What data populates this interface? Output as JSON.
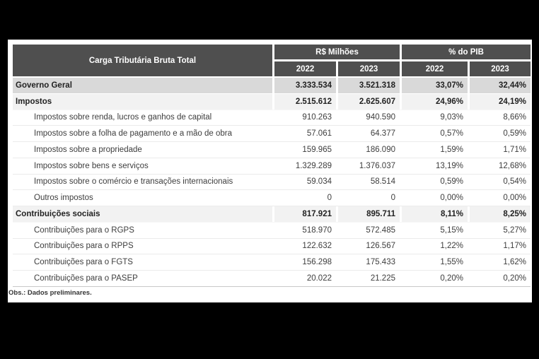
{
  "title": "Carga Tributária Bruta Total",
  "header": {
    "groups": [
      {
        "label": "R$ Milhões"
      },
      {
        "label": "% do PIB"
      }
    ],
    "years": [
      "2022",
      "2023",
      "2022",
      "2023"
    ]
  },
  "rows": [
    {
      "label": "Governo Geral",
      "level": 0,
      "emphasis": "total",
      "values": [
        "3.333.534",
        "3.521.318",
        "33,07%",
        "32,44%"
      ]
    },
    {
      "label": "Impostos",
      "level": 0,
      "emphasis": "section",
      "values": [
        "2.515.612",
        "2.625.607",
        "24,96%",
        "24,19%"
      ]
    },
    {
      "label": "Impostos sobre renda, lucros e ganhos de capital",
      "level": 1,
      "emphasis": "none",
      "values": [
        "910.263",
        "940.590",
        "9,03%",
        "8,66%"
      ]
    },
    {
      "label": "Impostos sobre a folha de pagamento e a mão de obra",
      "level": 1,
      "emphasis": "none",
      "values": [
        "57.061",
        "64.377",
        "0,57%",
        "0,59%"
      ]
    },
    {
      "label": "Impostos sobre a propriedade",
      "level": 1,
      "emphasis": "none",
      "values": [
        "159.965",
        "186.090",
        "1,59%",
        "1,71%"
      ]
    },
    {
      "label": "Impostos sobre bens e serviços",
      "level": 1,
      "emphasis": "none",
      "values": [
        "1.329.289",
        "1.376.037",
        "13,19%",
        "12,68%"
      ]
    },
    {
      "label": "Impostos sobre o comércio e transações internacionais",
      "level": 1,
      "emphasis": "none",
      "values": [
        "59.034",
        "58.514",
        "0,59%",
        "0,54%"
      ]
    },
    {
      "label": "Outros impostos",
      "level": 1,
      "emphasis": "none",
      "values": [
        "0",
        "0",
        "0,00%",
        "0,00%"
      ]
    },
    {
      "label": "Contribuições sociais",
      "level": 0,
      "emphasis": "section",
      "values": [
        "817.921",
        "895.711",
        "8,11%",
        "8,25%"
      ]
    },
    {
      "label": "Contribuições para o RGPS",
      "level": 1,
      "emphasis": "none",
      "values": [
        "518.970",
        "572.485",
        "5,15%",
        "5,27%"
      ]
    },
    {
      "label": "Contribuições para o RPPS",
      "level": 1,
      "emphasis": "none",
      "values": [
        "122.632",
        "126.567",
        "1,22%",
        "1,17%"
      ]
    },
    {
      "label": "Contribuições para o FGTS",
      "level": 1,
      "emphasis": "none",
      "values": [
        "156.298",
        "175.433",
        "1,55%",
        "1,62%"
      ]
    },
    {
      "label": "Contribuições para o PASEP",
      "level": 1,
      "emphasis": "none",
      "values": [
        "20.022",
        "21.225",
        "0,20%",
        "0,20%"
      ]
    }
  ],
  "footnote": "Obs.: Dados preliminares.",
  "colors": {
    "page_background": "#000000",
    "panel_background": "#ffffff",
    "header_background": "#4f4f4f",
    "header_text": "#ffffff",
    "total_row_background": "#d9d9d9",
    "section_row_background": "#f2f2f2",
    "body_text": "#3d3d3d"
  }
}
